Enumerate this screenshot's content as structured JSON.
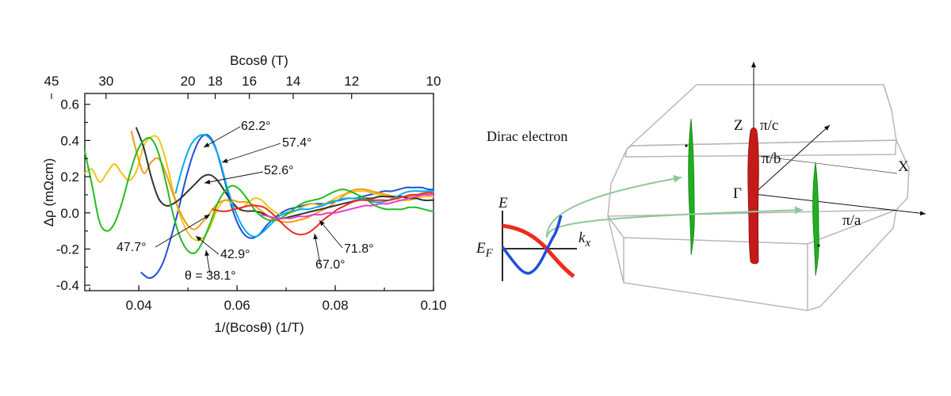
{
  "chart_data": {
    "type": "line",
    "xlabel": "1/(Bcosθ) (1/T)",
    "ylabel": "Δρ (mΩcm)",
    "top_xlabel": "Bcosθ (T)",
    "xlim": [
      0.029,
      0.1
    ],
    "ylim": [
      -0.43,
      0.66
    ],
    "x_ticks": [
      0.04,
      0.06,
      0.08,
      0.1
    ],
    "x_tick_labels": [
      "0.04",
      "0.06",
      "0.08",
      "0.10"
    ],
    "y_ticks": [
      -0.4,
      -0.2,
      0.0,
      0.2,
      0.4,
      0.6
    ],
    "y_tick_labels": [
      "-0.4",
      "-0.2",
      "0.0",
      "0.2",
      "0.4",
      "0.6"
    ],
    "top_ticks": [
      45,
      30,
      20,
      18,
      16,
      14,
      12,
      10
    ],
    "top_tick_labels": [
      "45",
      "30",
      "20",
      "18",
      "16",
      "14",
      "12",
      "10"
    ],
    "grid": false,
    "series": [
      {
        "name": "θ = 38.1°",
        "color": "#1f4fd8",
        "x": [
          0.0405,
          0.042,
          0.0435,
          0.045,
          0.0465,
          0.048,
          0.0495,
          0.051,
          0.0525,
          0.054,
          0.0555,
          0.057,
          0.0585,
          0.06,
          0.0615,
          0.063,
          0.0645,
          0.066,
          0.0675,
          0.069,
          0.0705,
          0.072,
          0.0735,
          0.075,
          0.0765,
          0.078,
          0.0795,
          0.081,
          0.0825,
          0.084,
          0.0855,
          0.087,
          0.0885,
          0.09,
          0.0915,
          0.093,
          0.0945,
          0.096,
          0.0975,
          0.099,
          0.1
        ],
        "y": [
          -0.33,
          -0.36,
          -0.34,
          -0.27,
          -0.14,
          0.01,
          0.18,
          0.32,
          0.41,
          0.43,
          0.37,
          0.23,
          0.07,
          -0.05,
          -0.12,
          -0.14,
          -0.12,
          -0.07,
          -0.03,
          0.0,
          0.02,
          0.03,
          0.04,
          0.05,
          0.05,
          0.05,
          0.06,
          0.07,
          0.08,
          0.08,
          0.09,
          0.1,
          0.11,
          0.12,
          0.12,
          0.13,
          0.14,
          0.14,
          0.14,
          0.13,
          0.13
        ]
      },
      {
        "name": "42.9°",
        "color": "#f0c419",
        "x": [
          0.029,
          0.0305,
          0.032,
          0.0335,
          0.035,
          0.0365,
          0.038,
          0.0395,
          0.041,
          0.0425,
          0.044,
          0.0455,
          0.047,
          0.0485,
          0.05,
          0.0515,
          0.053,
          0.0545,
          0.056,
          0.0575,
          0.059,
          0.0605,
          0.062,
          0.0635,
          0.065,
          0.0665,
          0.068,
          0.0695,
          0.071,
          0.0725,
          0.074,
          0.0755,
          0.077,
          0.0785,
          0.08,
          0.0815,
          0.083,
          0.0845,
          0.086,
          0.0875,
          0.089,
          0.0905,
          0.092,
          0.0935,
          0.095,
          0.0965,
          0.098,
          0.0995,
          0.1
        ],
        "y": [
          0.22,
          0.24,
          0.17,
          0.22,
          0.27,
          0.22,
          0.18,
          0.23,
          0.37,
          0.42,
          0.41,
          0.29,
          0.12,
          -0.02,
          -0.11,
          -0.15,
          -0.14,
          -0.08,
          0.02,
          0.07,
          0.05,
          0.02,
          0.05,
          0.08,
          0.07,
          0.03,
          0.0,
          -0.01,
          0.0,
          0.02,
          0.04,
          0.05,
          0.04,
          0.06,
          0.08,
          0.1,
          0.11,
          0.12,
          0.12,
          0.11,
          0.1,
          0.09,
          0.08,
          0.07,
          0.07,
          0.08,
          0.09,
          0.09,
          0.09
        ]
      },
      {
        "name": "47.7°",
        "color": "#f39c12",
        "x": [
          0.0385,
          0.0395,
          0.041,
          0.0425,
          0.044,
          0.0455,
          0.047,
          0.0485,
          0.05,
          0.0515,
          0.053,
          0.0545,
          0.056,
          0.0575,
          0.059,
          0.0605,
          0.062,
          0.0635,
          0.065,
          0.0665,
          0.068,
          0.0695,
          0.071,
          0.0725,
          0.074,
          0.0755,
          0.077,
          0.0785,
          0.08,
          0.0815,
          0.083,
          0.0845,
          0.086,
          0.0875,
          0.089,
          0.0905,
          0.092,
          0.0935,
          0.095,
          0.0965,
          0.098,
          0.0995,
          0.1
        ],
        "y": [
          0.45,
          0.34,
          0.22,
          0.28,
          0.3,
          0.22,
          0.1,
          0.0,
          -0.07,
          -0.09,
          -0.05,
          0.0,
          0.05,
          0.07,
          0.07,
          0.06,
          0.06,
          0.04,
          0.01,
          -0.02,
          -0.04,
          -0.05,
          -0.05,
          -0.04,
          -0.03,
          -0.01,
          0.01,
          0.03,
          0.06,
          0.09,
          0.12,
          0.13,
          0.13,
          0.12,
          0.11,
          0.1,
          0.09,
          0.09,
          0.09,
          0.1,
          0.11,
          0.11,
          0.11
        ]
      },
      {
        "name": "52.6°",
        "color": "#333333",
        "x": [
          0.0395,
          0.041,
          0.0425,
          0.044,
          0.0455,
          0.047,
          0.0485,
          0.05,
          0.0515,
          0.053,
          0.0545,
          0.056,
          0.0575,
          0.059,
          0.0605,
          0.062,
          0.0635,
          0.065,
          0.0665,
          0.068,
          0.0695,
          0.071,
          0.0725,
          0.074,
          0.0755,
          0.077,
          0.0785,
          0.08,
          0.0815,
          0.083,
          0.0845,
          0.086,
          0.0875,
          0.089,
          0.0905,
          0.092,
          0.0935,
          0.095,
          0.0965,
          0.098,
          0.0995,
          0.1
        ],
        "y": [
          0.47,
          0.36,
          0.2,
          0.08,
          0.04,
          0.05,
          0.08,
          0.12,
          0.16,
          0.2,
          0.21,
          0.18,
          0.12,
          0.06,
          0.02,
          0.01,
          0.01,
          0.0,
          -0.02,
          -0.03,
          -0.03,
          -0.02,
          -0.01,
          0.0,
          0.01,
          0.02,
          0.03,
          0.04,
          0.05,
          0.06,
          0.07,
          0.08,
          0.08,
          0.09,
          0.09,
          0.09,
          0.09,
          0.08,
          0.08,
          0.07,
          0.07,
          0.07
        ]
      },
      {
        "name": "57.4°",
        "color": "#00aeef",
        "x": [
          0.0475,
          0.049,
          0.0505,
          0.052,
          0.0535,
          0.055,
          0.0565,
          0.058,
          0.0595,
          0.061,
          0.0625,
          0.064,
          0.0655,
          0.067,
          0.0685,
          0.07,
          0.0715,
          0.073,
          0.0745,
          0.076,
          0.0775,
          0.079,
          0.0805,
          0.082,
          0.0835,
          0.085,
          0.0865,
          0.088,
          0.0895,
          0.091,
          0.0925,
          0.094,
          0.0955,
          0.097,
          0.0985,
          0.1
        ],
        "y": [
          0.11,
          0.26,
          0.37,
          0.42,
          0.43,
          0.39,
          0.29,
          0.14,
          0.02,
          -0.07,
          -0.12,
          -0.13,
          -0.1,
          -0.06,
          -0.02,
          0.0,
          0.01,
          0.02,
          0.02,
          0.03,
          0.04,
          0.06,
          0.07,
          0.08,
          0.08,
          0.08,
          0.07,
          0.06,
          0.06,
          0.07,
          0.09,
          0.11,
          0.12,
          0.12,
          0.12,
          0.12
        ]
      },
      {
        "name": "62.2°",
        "color": "#22bb22",
        "x": [
          0.029,
          0.0305,
          0.032,
          0.0335,
          0.035,
          0.0365,
          0.038,
          0.0395,
          0.041,
          0.0425,
          0.044,
          0.0455,
          0.047,
          0.0485,
          0.05,
          0.0515,
          0.053,
          0.0545,
          0.056,
          0.0575,
          0.059,
          0.0605,
          0.062,
          0.0635,
          0.065,
          0.0665,
          0.068,
          0.0695,
          0.071,
          0.0725,
          0.074,
          0.0755,
          0.077,
          0.0785,
          0.08,
          0.0815,
          0.083,
          0.0845,
          0.086,
          0.0875,
          0.089,
          0.0905,
          0.092,
          0.0935,
          0.095,
          0.0965,
          0.098,
          0.0995,
          0.1
        ],
        "y": [
          0.34,
          0.15,
          -0.05,
          -0.1,
          -0.06,
          0.05,
          0.2,
          0.33,
          0.4,
          0.41,
          0.33,
          0.17,
          -0.01,
          -0.14,
          -0.21,
          -0.22,
          -0.16,
          -0.06,
          0.05,
          0.12,
          0.15,
          0.13,
          0.08,
          0.02,
          -0.02,
          -0.04,
          -0.04,
          -0.02,
          0.01,
          0.04,
          0.06,
          0.07,
          0.08,
          0.1,
          0.12,
          0.13,
          0.12,
          0.1,
          0.08,
          0.05,
          0.03,
          0.02,
          0.02,
          0.02,
          0.03,
          0.03,
          0.02,
          0.01,
          0.01
        ]
      },
      {
        "name": "67.0°",
        "color": "#ee2a1a",
        "x": [
          0.055,
          0.0565,
          0.058,
          0.0595,
          0.061,
          0.0625,
          0.064,
          0.0655,
          0.067,
          0.0685,
          0.07,
          0.0715,
          0.073,
          0.0745,
          0.076,
          0.0775,
          0.079,
          0.0805,
          0.082,
          0.0835,
          0.085,
          0.0865,
          0.088,
          0.0895,
          0.091,
          0.0925,
          0.094,
          0.0955,
          0.097,
          0.0985,
          0.1
        ],
        "y": [
          0.02,
          0.01,
          0.01,
          0.02,
          0.03,
          0.04,
          0.04,
          0.03,
          0.0,
          -0.04,
          -0.08,
          -0.11,
          -0.12,
          -0.11,
          -0.08,
          -0.04,
          -0.01,
          0.02,
          0.04,
          0.06,
          0.07,
          0.07,
          0.07,
          0.07,
          0.07,
          0.08,
          0.09,
          0.1,
          0.1,
          0.11,
          0.11
        ]
      },
      {
        "name": "71.8°",
        "color": "#e040d0",
        "x": [
          0.065,
          0.0665,
          0.068,
          0.0695,
          0.071,
          0.0725,
          0.074,
          0.0755,
          0.077,
          0.0785,
          0.08,
          0.0815,
          0.083,
          0.0845,
          0.086,
          0.0875,
          0.089,
          0.0905,
          0.092,
          0.0935,
          0.095,
          0.0965,
          0.098,
          0.0995,
          0.1
        ],
        "y": [
          -0.01,
          -0.02,
          -0.03,
          -0.03,
          -0.03,
          -0.02,
          -0.02,
          -0.01,
          -0.01,
          0.0,
          0.0,
          0.01,
          0.02,
          0.03,
          0.04,
          0.04,
          0.05,
          0.05,
          0.06,
          0.07,
          0.08,
          0.09,
          0.1,
          0.1,
          0.11
        ]
      }
    ],
    "annotations": [
      {
        "text": "62.2°",
        "series": "62.2°"
      },
      {
        "text": "57.4°",
        "series": "57.4°"
      },
      {
        "text": "52.6°",
        "series": "52.6°"
      },
      {
        "text": "47.7°",
        "series": "47.7°"
      },
      {
        "text": "42.9°",
        "series": "42.9°"
      },
      {
        "text": "θ = 38.1°",
        "series": "θ = 38.1°"
      },
      {
        "text": "67.0°",
        "series": "67.0°"
      },
      {
        "text": "71.8°",
        "series": "71.8°"
      }
    ]
  },
  "diagram": {
    "dirac_label": "Dirac electron",
    "inset": {
      "e_label": "E",
      "ef_label": "E",
      "ef_sub": "F",
      "kx_label": "k",
      "kx_sub": "x"
    },
    "bz_labels": {
      "z_label": "Z",
      "pi_c": "π/c",
      "pi_b": "π/b",
      "gamma": "Γ",
      "x_label": "X",
      "pi_a": "π/a"
    },
    "colors": {
      "bz_edges": "#b8b8b8",
      "dirac_pocket": "#1eb01e",
      "central_pocket": "#c41a1a",
      "arrow": "#8fc79a"
    }
  }
}
